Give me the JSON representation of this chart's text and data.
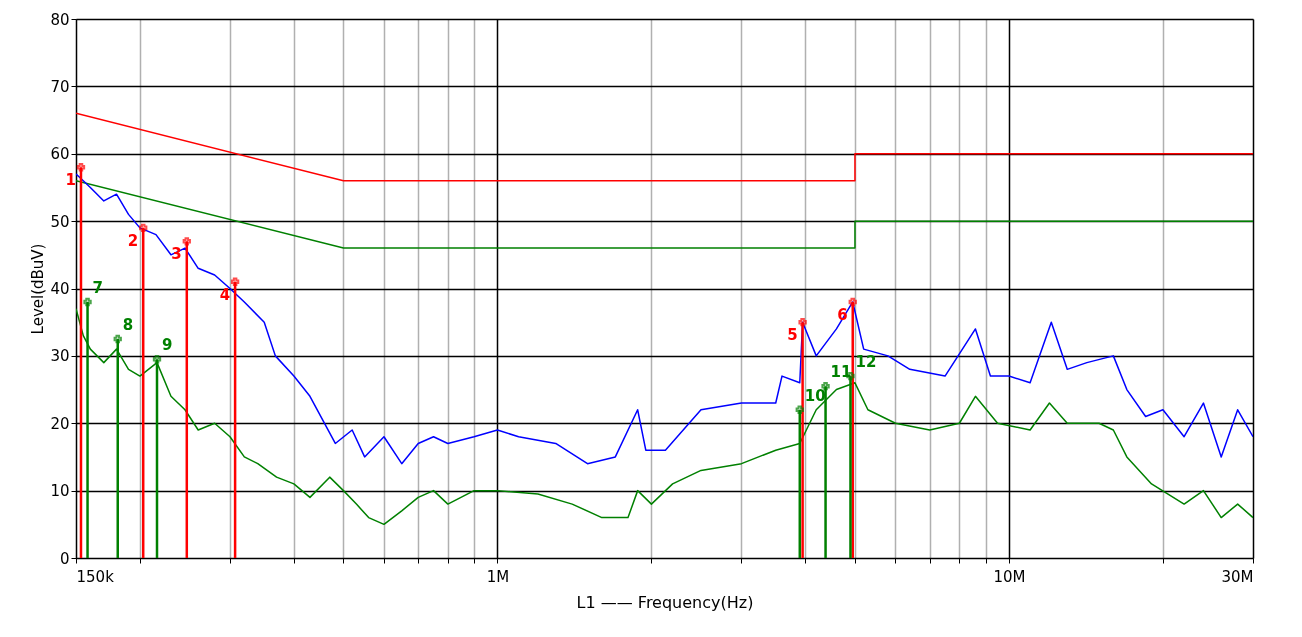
{
  "chart_data": {
    "type": "line",
    "xlabel": "L1 —— Frequency(Hz)",
    "ylabel": "Level(dBuV)",
    "log": "x",
    "grid": true,
    "marker": "none",
    "xlim": [
      150000,
      30000000
    ],
    "ylim": [
      0,
      80
    ],
    "xticks": [
      {
        "value": 150000,
        "label": "150k"
      },
      {
        "value": 200000,
        "label": null
      },
      {
        "value": 300000,
        "label": null
      },
      {
        "value": 400000,
        "label": null
      },
      {
        "value": 500000,
        "label": null
      },
      {
        "value": 600000,
        "label": null
      },
      {
        "value": 700000,
        "label": null
      },
      {
        "value": 800000,
        "label": null
      },
      {
        "value": 900000,
        "label": null
      },
      {
        "value": 1000000,
        "label": "1M"
      },
      {
        "value": 2000000,
        "label": null
      },
      {
        "value": 3000000,
        "label": null
      },
      {
        "value": 4000000,
        "label": null
      },
      {
        "value": 5000000,
        "label": null
      },
      {
        "value": 6000000,
        "label": null
      },
      {
        "value": 7000000,
        "label": null
      },
      {
        "value": 8000000,
        "label": null
      },
      {
        "value": 9000000,
        "label": null
      },
      {
        "value": 10000000,
        "label": "10M"
      },
      {
        "value": 20000000,
        "label": null
      },
      {
        "value": 30000000,
        "label": "30M"
      }
    ],
    "yticks": [
      0,
      10,
      20,
      30,
      40,
      50,
      60,
      70,
      80
    ],
    "series": [
      {
        "color": "#ff0000",
        "x": [
          150000,
          500000,
          5000000,
          5000000,
          30000000
        ],
        "values": [
          66,
          56,
          56,
          60,
          60
        ]
      },
      {
        "color": "#008000",
        "x": [
          150000,
          500000,
          5000000,
          5000000,
          30000000
        ],
        "values": [
          56,
          46,
          46,
          50,
          50
        ]
      },
      {
        "color": "#0000ff",
        "x": [
          150000,
          155000,
          160000,
          170000,
          180000,
          190000,
          200000,
          215000,
          230000,
          245000,
          260000,
          280000,
          300000,
          320000,
          350000,
          368000,
          400000,
          430000,
          482000,
          520000,
          550000,
          600000,
          650000,
          700000,
          750000,
          800000,
          900000,
          1000000,
          1100000,
          1300000,
          1500000,
          1700000,
          1880000,
          1950000,
          2130000,
          2500000,
          3000000,
          3500000,
          3600000,
          3900000,
          3950000,
          4200000,
          4600000,
          4950000,
          5200000,
          5800000,
          6400000,
          7500000,
          8600000,
          9200000,
          10000000,
          11000000,
          12100000,
          13000000,
          14200000,
          16000000,
          17000000,
          18500000,
          20000000,
          22000000,
          24000000,
          26000000,
          28000000,
          30000000
        ],
        "values": [
          57,
          56,
          55,
          53,
          54,
          51,
          49,
          48,
          45,
          46,
          43,
          42,
          40,
          38,
          35,
          30,
          27,
          24,
          17,
          19,
          15,
          18,
          14,
          17,
          18,
          17,
          18,
          19,
          18,
          17,
          14,
          15,
          22,
          16,
          16,
          22,
          23,
          23,
          27,
          26,
          35,
          30,
          34,
          38,
          31,
          30,
          28,
          27,
          34,
          27,
          27,
          26,
          35,
          28,
          29,
          30,
          25,
          21,
          22,
          18,
          23,
          15,
          22,
          18
        ]
      },
      {
        "color": "#008000",
        "x": [
          150000,
          155000,
          160000,
          170000,
          180000,
          190000,
          200000,
          216000,
          230000,
          245000,
          260000,
          280000,
          300000,
          320000,
          340000,
          370000,
          400000,
          430000,
          470000,
          500000,
          530000,
          560000,
          600000,
          650000,
          700000,
          750000,
          800000,
          900000,
          1000000,
          1200000,
          1400000,
          1600000,
          1800000,
          1880000,
          2000000,
          2200000,
          2500000,
          3000000,
          3500000,
          3900000,
          4200000,
          4600000,
          5000000,
          5300000,
          6000000,
          7000000,
          8000000,
          8600000,
          9500000,
          11000000,
          12000000,
          13000000,
          15000000,
          16000000,
          17000000,
          19000000,
          22000000,
          24000000,
          26000000,
          28000000,
          30000000
        ],
        "values": [
          37,
          33,
          31,
          29,
          31,
          28,
          27,
          29,
          24,
          22,
          19,
          20,
          18,
          15,
          14,
          12,
          11,
          9,
          12,
          10,
          8,
          6,
          5,
          7,
          9,
          10,
          8,
          10,
          10,
          9.5,
          8,
          6,
          6,
          10,
          8,
          11,
          13,
          14,
          16,
          17,
          22,
          25,
          26,
          22,
          20,
          19,
          20,
          24,
          20,
          19,
          23,
          20,
          20,
          19,
          15,
          11,
          8,
          10,
          6,
          8,
          6
        ]
      },
      {
        "type": "lollipop",
        "color": "#ff0000",
        "marker": "cross",
        "x": [
          153400,
          203000,
          247000,
          307000,
          3950000,
          4950000
        ],
        "values": [
          58,
          49,
          47,
          41,
          35,
          38
        ]
      },
      {
        "type": "lollipop",
        "color": "#008000",
        "marker": "cross",
        "x": [
          158000,
          181000,
          216000,
          3900000,
          4380000,
          4900000
        ],
        "values": [
          38,
          32.5,
          29.5,
          22,
          25.5,
          27
        ]
      }
    ],
    "annotations": [
      "1",
      "2",
      "3",
      "4",
      "5",
      "6",
      "7",
      "8",
      "9",
      "10",
      "11",
      "12"
    ]
  }
}
